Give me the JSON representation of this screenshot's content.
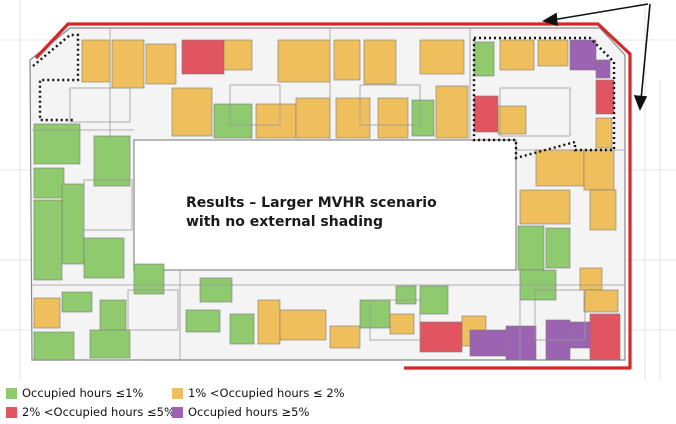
{
  "caption": {
    "line1": "Results – Larger MVHR scenario",
    "line2": "with no external shading"
  },
  "legend": [
    {
      "label": "Occupied hours ≤1%",
      "color": "#8fca6f"
    },
    {
      "label": "1% <Occupied hours ≤ 2%",
      "color": "#eebf5c"
    },
    {
      "label": "2% <Occupied hours ≤5%",
      "color": "#e05560"
    },
    {
      "label": "Occupied hours ≥5%",
      "color": "#9c63b3"
    }
  ],
  "colors": {
    "green": "#8fca6f",
    "amber": "#eebf5c",
    "red": "#e05560",
    "purple": "#9c63b3",
    "boundary": "#d62727",
    "linework": "#9a9a9a"
  }
}
